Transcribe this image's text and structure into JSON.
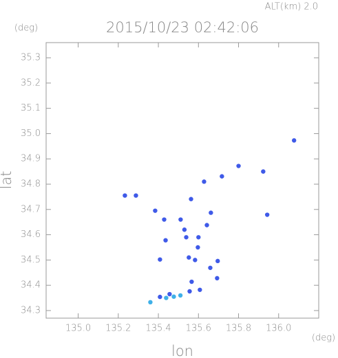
{
  "chart_data": {
    "type": "scatter",
    "title": "2015/10/23 02:42:06",
    "annotation": "ALT(km) 2.0",
    "y_unit": "(deg)",
    "x_unit": "(deg)",
    "xlabel": "lon",
    "ylabel": "lat",
    "xlim": [
      134.84,
      136.2
    ],
    "ylim": [
      34.27,
      35.36
    ],
    "xticks": [
      {
        "value": 135.0,
        "label": "135.0"
      },
      135.2,
      135.4,
      135.6,
      135.8,
      {
        "value": 136.0,
        "label": "136.0"
      }
    ],
    "yticks": [
      34.3,
      34.4,
      34.5,
      34.6,
      34.7,
      34.8,
      34.9,
      {
        "value": 35.0,
        "label": "35.0"
      },
      35.1,
      35.2,
      35.3
    ],
    "series": [
      {
        "color": "#3f5ae8",
        "x": [
          135.233,
          135.288,
          135.384,
          135.429,
          135.436,
          135.408,
          135.563,
          135.628,
          135.662,
          135.642,
          135.511,
          135.53,
          135.539,
          135.6,
          135.597,
          135.552,
          135.583,
          135.696,
          135.659,
          135.693,
          135.566,
          135.607,
          135.556,
          135.456,
          135.408,
          135.943,
          135.923,
          135.8,
          135.717,
          136.077
        ],
        "values": [
          34.755,
          34.755,
          34.695,
          34.66,
          34.578,
          34.502,
          34.741,
          34.81,
          34.687,
          34.638,
          34.66,
          34.62,
          34.59,
          34.59,
          34.55,
          34.51,
          34.5,
          34.496,
          34.469,
          34.428,
          34.414,
          34.382,
          34.376,
          34.365,
          34.354,
          34.679,
          34.85,
          34.872,
          34.831,
          34.973
        ]
      },
      {
        "color": "#3fb0e8",
        "x": [
          135.36,
          135.477,
          135.439,
          135.51
        ],
        "values": [
          34.333,
          34.355,
          34.35,
          34.36
        ]
      }
    ]
  }
}
